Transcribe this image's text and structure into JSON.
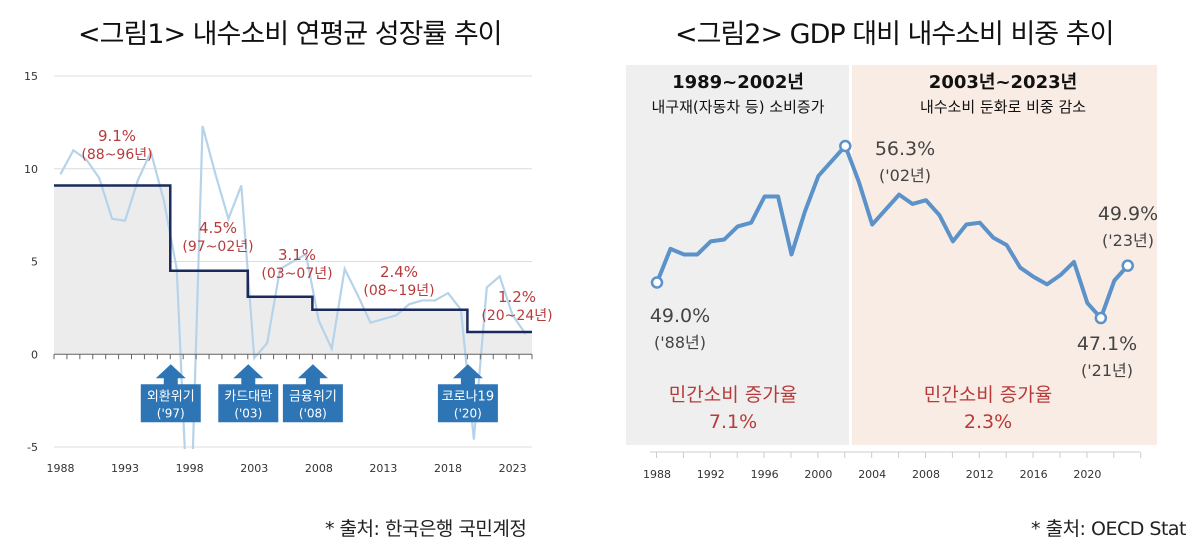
{
  "figure1": {
    "title": "<그림1> 내수소비 연평균 성장률 추이",
    "source": "* 출처: 한국은행 국민계정"
  },
  "figure2": {
    "title": "<그림2> GDP 대비 내수소비 비중 추이",
    "source": "* 출처: OECD Stat"
  },
  "colors": {
    "growth_line": "#b6d3ea",
    "avg_line": "#1b2a5c",
    "avg_fill": "#ececec",
    "annotation_red": "#b83a3a",
    "event_box": "#2e75b6",
    "share_line": "#5b92c9",
    "period1_bg": "#efefef",
    "period2_bg": "#f9ece4"
  },
  "chart_data": [
    {
      "type": "line",
      "title": "<그림1> 내수소비 연평균 성장률 추이",
      "xlabel": "",
      "ylabel": "",
      "ylim": [
        -5,
        15
      ],
      "yticks": [
        -5,
        0,
        5,
        10,
        15
      ],
      "xticks": [
        "1988",
        "1993",
        "1998",
        "2003",
        "2008",
        "2013",
        "2018",
        "2023"
      ],
      "grid": true,
      "x": [
        1988,
        1989,
        1990,
        1991,
        1992,
        1993,
        1994,
        1995,
        1996,
        1997,
        1998,
        1999,
        2000,
        2001,
        2002,
        2003,
        2004,
        2005,
        2006,
        2007,
        2008,
        2009,
        2010,
        2011,
        2012,
        2013,
        2014,
        2015,
        2016,
        2017,
        2018,
        2019,
        2020,
        2021,
        2022,
        2023,
        2024
      ],
      "series": [
        {
          "name": "내수소비 성장률",
          "values": [
            9.7,
            11.0,
            10.5,
            9.5,
            7.3,
            7.2,
            9.4,
            10.9,
            8.3,
            4.6,
            -11.0,
            12.3,
            9.7,
            7.3,
            9.1,
            -0.2,
            0.6,
            4.6,
            5.0,
            5.4,
            1.8,
            0.3,
            4.6,
            3.2,
            1.7,
            1.9,
            2.1,
            2.7,
            2.9,
            2.9,
            3.3,
            2.4,
            -4.6,
            3.6,
            4.2,
            2.1,
            1.1
          ]
        }
      ],
      "period_averages": [
        {
          "start": 1988,
          "end": 1996,
          "value": 9.1,
          "label": "9.1%",
          "range_label": "(88~96년)"
        },
        {
          "start": 1997,
          "end": 2002,
          "value": 4.5,
          "label": "4.5%",
          "range_label": "(97~02년)"
        },
        {
          "start": 2003,
          "end": 2007,
          "value": 3.1,
          "label": "3.1%",
          "range_label": "(03~07년)"
        },
        {
          "start": 2008,
          "end": 2019,
          "value": 2.4,
          "label": "2.4%",
          "range_label": "(08~19년)"
        },
        {
          "start": 2020,
          "end": 2024,
          "value": 1.2,
          "label": "1.2%",
          "range_label": "(20~24년)"
        }
      ],
      "events": [
        {
          "year": 1997,
          "name": "외환위기",
          "year_label": "('97)"
        },
        {
          "year": 2003,
          "name": "카드대란",
          "year_label": "('03)"
        },
        {
          "year": 2008,
          "name": "금융위기",
          "year_label": "('08)"
        },
        {
          "year": 2020,
          "name": "코로나19",
          "year_label": "('20)"
        }
      ]
    },
    {
      "type": "line",
      "title": "<그림2> GDP 대비 내수소비 비중 추이",
      "xlabel": "",
      "ylabel": "",
      "ylim": [
        43.5,
        60.5
      ],
      "xticks": [
        "1988",
        "1992",
        "1996",
        "2000",
        "2004",
        "2008",
        "2012",
        "2016",
        "2020"
      ],
      "grid": false,
      "x": [
        1988,
        1989,
        1990,
        1991,
        1992,
        1993,
        1994,
        1995,
        1996,
        1997,
        1998,
        1999,
        2000,
        2001,
        2002,
        2003,
        2004,
        2005,
        2006,
        2007,
        2008,
        2009,
        2010,
        2011,
        2012,
        2013,
        2014,
        2015,
        2016,
        2017,
        2018,
        2019,
        2020,
        2021,
        2022,
        2023
      ],
      "series": [
        {
          "name": "GDP 대비 내수소비 비중",
          "values": [
            49.0,
            50.8,
            50.5,
            50.5,
            51.2,
            51.3,
            52.0,
            52.2,
            53.6,
            53.6,
            50.5,
            52.8,
            54.7,
            55.5,
            56.3,
            54.4,
            52.1,
            52.9,
            53.7,
            53.2,
            53.4,
            52.6,
            51.2,
            52.1,
            52.2,
            51.4,
            51.0,
            49.8,
            49.3,
            48.9,
            49.4,
            50.1,
            47.9,
            47.1,
            49.1,
            49.9
          ]
        }
      ],
      "highlighted_points": [
        {
          "year": 1988,
          "label": "49.0%",
          "year_label": "('88년)"
        },
        {
          "year": 2002,
          "label": "56.3%",
          "year_label": "('02년)"
        },
        {
          "year": 2021,
          "label": "47.1%",
          "year_label": "('21년)"
        },
        {
          "year": 2023,
          "label": "49.9%",
          "year_label": "('23년)"
        }
      ],
      "periods": [
        {
          "start": 1988,
          "end": 2002,
          "heading": "1989~2002년",
          "subheading": "내구재(자동차 등) 소비증가",
          "stat_label": "민간소비 증가율",
          "stat_value": "7.1%"
        },
        {
          "start": 2003,
          "end": 2023,
          "heading": "2003년~2023년",
          "subheading": "내수소비 둔화로 비중 감소",
          "stat_label": "민간소비 증가율",
          "stat_value": "2.3%"
        }
      ]
    }
  ]
}
